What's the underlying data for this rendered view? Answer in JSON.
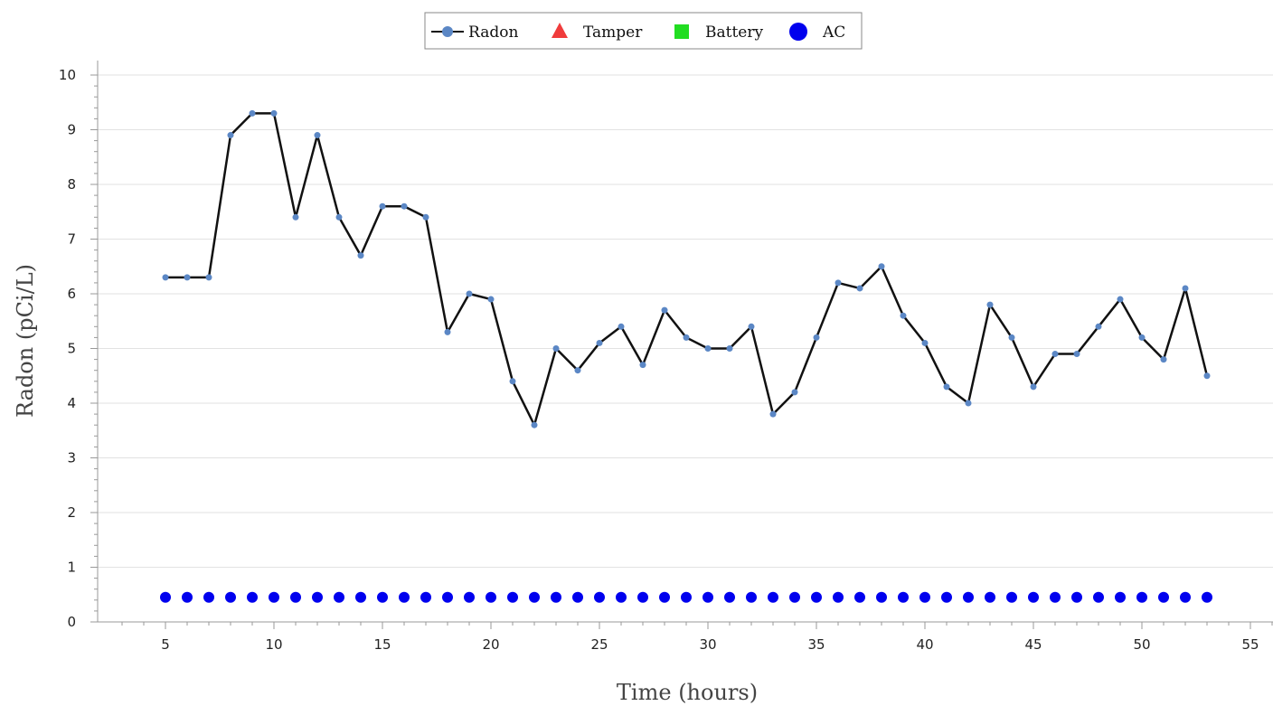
{
  "chart_data": {
    "type": "line",
    "title": "",
    "xlabel": "Time (hours)",
    "ylabel": "Radon (pCi/L)",
    "xlim": [
      2,
      56
    ],
    "ylim": [
      0,
      10
    ],
    "x_ticks": [
      5,
      10,
      15,
      20,
      25,
      30,
      35,
      40,
      45,
      50,
      55
    ],
    "y_ticks": [
      0,
      1,
      2,
      3,
      4,
      5,
      6,
      7,
      8,
      9,
      10
    ],
    "grid": "horizontal",
    "legend_position": "top-center",
    "legend": [
      {
        "label": "Radon",
        "marker": "circle-line",
        "color": "#5b87c5"
      },
      {
        "label": "Tamper",
        "marker": "triangle",
        "color": "#f03c3c"
      },
      {
        "label": "Battery",
        "marker": "square",
        "color": "#22dd22"
      },
      {
        "label": "AC",
        "marker": "circle",
        "color": "#0000ee"
      }
    ],
    "series": [
      {
        "name": "Radon",
        "line_color": "#111111",
        "marker_color": "#5b87c5",
        "x": [
          5,
          6,
          7,
          8,
          9,
          10,
          11,
          12,
          13,
          14,
          15,
          16,
          17,
          18,
          19,
          20,
          21,
          22,
          23,
          24,
          25,
          26,
          27,
          28,
          29,
          30,
          31,
          32,
          33,
          34,
          35,
          36,
          37,
          38,
          39,
          40,
          41,
          42,
          43,
          44,
          45,
          46,
          47,
          48,
          49,
          50,
          51,
          52,
          53
        ],
        "values": [
          6.3,
          6.3,
          6.3,
          8.9,
          9.3,
          9.3,
          7.4,
          8.9,
          7.4,
          6.7,
          7.6,
          7.6,
          7.4,
          5.3,
          6.0,
          5.9,
          4.4,
          3.6,
          5.0,
          4.6,
          5.1,
          5.4,
          4.7,
          5.7,
          5.2,
          5.0,
          5.0,
          5.4,
          3.8,
          4.2,
          5.2,
          6.2,
          6.1,
          6.5,
          5.6,
          5.1,
          4.3,
          4.0,
          5.8,
          5.2,
          4.3,
          4.9,
          4.9,
          5.4,
          5.9,
          5.2,
          4.8,
          6.1,
          4.5
        ]
      },
      {
        "name": "AC",
        "marker_color": "#0000ee",
        "x": [
          5,
          6,
          7,
          8,
          9,
          10,
          11,
          12,
          13,
          14,
          15,
          16,
          17,
          18,
          19,
          20,
          21,
          22,
          23,
          24,
          25,
          26,
          27,
          28,
          29,
          30,
          31,
          32,
          33,
          34,
          35,
          36,
          37,
          38,
          39,
          40,
          41,
          42,
          43,
          44,
          45,
          46,
          47,
          48,
          49,
          50,
          51,
          52,
          53
        ],
        "values": [
          0.45,
          0.45,
          0.45,
          0.45,
          0.45,
          0.45,
          0.45,
          0.45,
          0.45,
          0.45,
          0.45,
          0.45,
          0.45,
          0.45,
          0.45,
          0.45,
          0.45,
          0.45,
          0.45,
          0.45,
          0.45,
          0.45,
          0.45,
          0.45,
          0.45,
          0.45,
          0.45,
          0.45,
          0.45,
          0.45,
          0.45,
          0.45,
          0.45,
          0.45,
          0.45,
          0.45,
          0.45,
          0.45,
          0.45,
          0.45,
          0.45,
          0.45,
          0.45,
          0.45,
          0.45,
          0.45,
          0.45,
          0.45,
          0.45
        ]
      }
    ]
  }
}
